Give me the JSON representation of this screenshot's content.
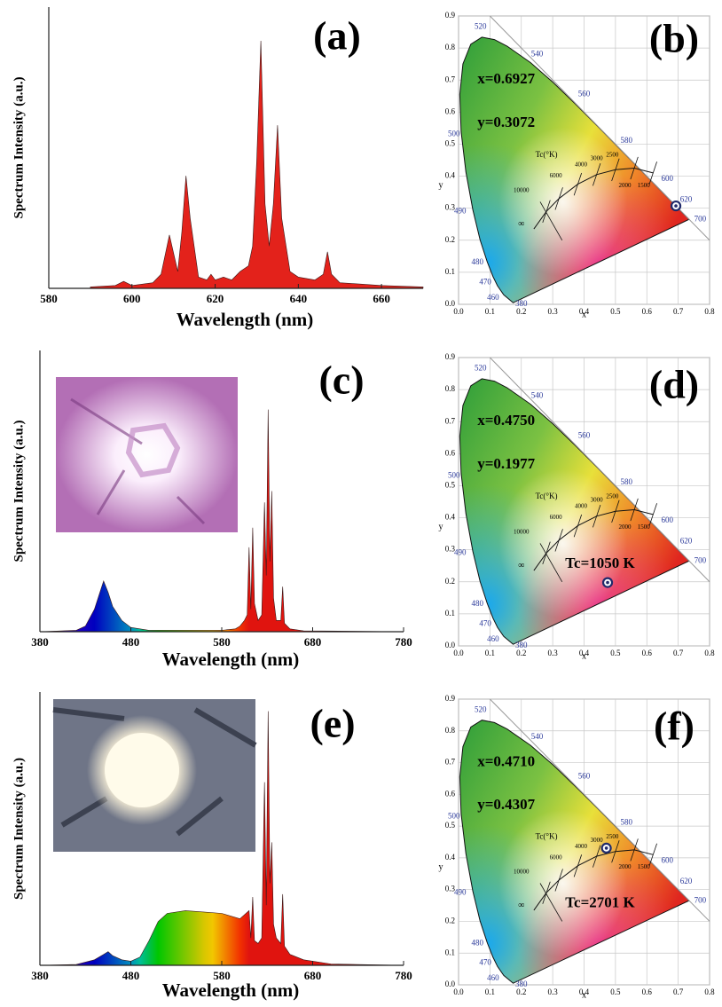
{
  "chart_data": [
    {
      "type": "area",
      "panel_label": "(a)",
      "xlabel": "Wavelength (nm)",
      "ylabel": "Spectrum Intensity (a.u.)",
      "x": [
        590,
        596,
        598,
        600,
        605,
        607,
        609,
        611,
        612,
        613,
        614,
        616,
        618,
        619,
        620,
        622,
        624,
        626,
        628,
        629,
        630,
        631,
        632,
        633,
        634,
        635,
        636,
        638,
        640,
        644,
        646,
        647,
        648,
        650,
        655,
        660,
        670
      ],
      "values": [
        0.5,
        1,
        2.5,
        1,
        2,
        5,
        19,
        6,
        20,
        40,
        25,
        4,
        3,
        5,
        3,
        4,
        3,
        6,
        8,
        15,
        45,
        88,
        30,
        15,
        30,
        58,
        25,
        6,
        4,
        3,
        5,
        13,
        5,
        2,
        1.5,
        1,
        0.5
      ],
      "color": "#e3221b",
      "xlim": [
        580,
        670
      ],
      "xticks": [
        580,
        600,
        620,
        640,
        660
      ],
      "ylim": [
        0,
        100
      ]
    },
    {
      "type": "cie",
      "panel_label": "(b)",
      "xlabel": "x",
      "ylabel": "y",
      "annotations": [
        "x=0.6927",
        "y=0.3072"
      ],
      "x": [
        0.6927
      ],
      "y": [
        0.3072
      ],
      "color": "#1f2a6b",
      "xlim": [
        0,
        0.8
      ],
      "xticks": [
        {
          "value": 0,
          "label": "0.0"
        },
        0.1,
        0.2,
        0.3,
        0.4,
        0.5,
        0.6,
        0.7,
        0.8
      ],
      "ylim": [
        0,
        0.9
      ],
      "yticks": [
        {
          "value": 0,
          "label": "0.0"
        },
        0.1,
        0.2,
        0.3,
        0.4,
        0.5,
        0.6,
        0.7,
        0.8,
        0.9
      ],
      "grid": true,
      "locus_labels": [
        380,
        460,
        470,
        480,
        490,
        500,
        520,
        540,
        560,
        580,
        600,
        620,
        700
      ],
      "cct_title": "Tc(°K)",
      "cct_labels": [
        10000,
        6000,
        4000,
        3000,
        2500,
        2000,
        1500
      ],
      "cct_infinity": "∞"
    },
    {
      "type": "area",
      "panel_label": "(c)",
      "xlabel": "Wavelength (nm)",
      "ylabel": "Spectrum Intensity (a.u.)",
      "x": [
        380,
        420,
        430,
        440,
        445,
        450,
        455,
        460,
        470,
        480,
        500,
        580,
        595,
        600,
        605,
        608,
        610,
        612,
        614,
        616,
        620,
        624,
        627,
        629,
        631,
        633,
        635,
        637,
        640,
        645,
        647,
        649,
        655,
        670,
        780
      ],
      "values": [
        0,
        0.5,
        2,
        8,
        13,
        18,
        14,
        9,
        4,
        1.5,
        0.5,
        0.5,
        1,
        2,
        4,
        6,
        30,
        8,
        37,
        10,
        4,
        6,
        46,
        20,
        79,
        25,
        50,
        12,
        4,
        4,
        16,
        3,
        1,
        0.3,
        0
      ],
      "color_by_wavelength": true,
      "xlim": [
        380,
        780
      ],
      "xticks": [
        380,
        480,
        580,
        680,
        780
      ],
      "ylim": [
        0,
        100
      ]
    },
    {
      "type": "cie",
      "panel_label": "(d)",
      "xlabel": "x",
      "ylabel": "y",
      "annotations": [
        "x=0.4750",
        "y=0.1977",
        "Tc=1050 K"
      ],
      "x": [
        0.475
      ],
      "y": [
        0.1977
      ],
      "color": "#1f2a6b",
      "xlim": [
        0,
        0.8
      ],
      "xticks": [
        {
          "value": 0,
          "label": "0.0"
        },
        0.1,
        0.2,
        0.3,
        0.4,
        0.5,
        0.6,
        0.7,
        0.8
      ],
      "ylim": [
        0,
        0.9
      ],
      "yticks": [
        {
          "value": 0,
          "label": "0.0"
        },
        0.1,
        0.2,
        0.3,
        0.4,
        0.5,
        0.6,
        0.7,
        0.8,
        0.9
      ],
      "grid": true,
      "locus_labels": [
        380,
        460,
        470,
        480,
        490,
        500,
        520,
        540,
        560,
        580,
        600,
        620,
        700
      ],
      "cct_title": "Tc(°K)",
      "cct_labels": [
        10000,
        6000,
        4000,
        3000,
        2500,
        2000,
        1500
      ],
      "cct_infinity": "∞"
    },
    {
      "type": "area",
      "panel_label": "(e)",
      "xlabel": "Wavelength (nm)",
      "ylabel": "Spectrum Intensity (a.u.)",
      "x": [
        380,
        420,
        440,
        450,
        455,
        460,
        470,
        480,
        490,
        500,
        510,
        520,
        540,
        560,
        580,
        600,
        610,
        612,
        614,
        616,
        620,
        624,
        627,
        629,
        631,
        633,
        635,
        637,
        640,
        645,
        647,
        649,
        655,
        670,
        700,
        780
      ],
      "values": [
        0,
        0.3,
        2,
        4,
        5,
        3.5,
        2,
        1.5,
        3,
        9,
        16,
        19,
        20,
        19.5,
        19,
        17,
        20,
        10,
        25,
        9,
        8,
        10,
        67,
        22,
        93,
        30,
        45,
        15,
        10,
        8,
        26,
        7,
        4,
        2,
        0.5,
        0
      ],
      "color_by_wavelength": true,
      "xlim": [
        380,
        780
      ],
      "xticks": [
        380,
        480,
        580,
        680,
        780
      ],
      "ylim": [
        0,
        100
      ]
    },
    {
      "type": "cie",
      "panel_label": "(f)",
      "xlabel": "x",
      "ylabel": "y",
      "annotations": [
        "x=0.4710",
        "y=0.4307",
        "Tc=2701 K"
      ],
      "x": [
        0.471
      ],
      "y": [
        0.4307
      ],
      "color": "#1f2a6b",
      "xlim": [
        0,
        0.8
      ],
      "xticks": [
        {
          "value": 0,
          "label": "0.0"
        },
        0.1,
        0.2,
        0.3,
        0.4,
        0.5,
        0.6,
        0.7,
        0.8
      ],
      "ylim": [
        0,
        0.9
      ],
      "yticks": [
        {
          "value": 0,
          "label": "0.0"
        },
        0.1,
        0.2,
        0.3,
        0.4,
        0.5,
        0.6,
        0.7,
        0.8,
        0.9
      ],
      "grid": true,
      "locus_labels": [
        380,
        460,
        470,
        480,
        490,
        500,
        520,
        540,
        560,
        580,
        600,
        620,
        700
      ],
      "cct_title": "Tc(°K)",
      "cct_labels": [
        10000,
        6000,
        4000,
        3000,
        2500,
        2000,
        1500
      ],
      "cct_infinity": "∞"
    }
  ]
}
